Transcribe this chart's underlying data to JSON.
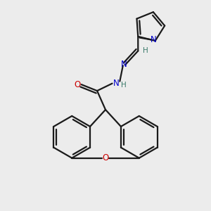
{
  "bg_color": "#ececec",
  "bond_color": "#1a1a1a",
  "N_color": "#0000cc",
  "O_color": "#cc0000",
  "H_color": "#3a7a6a",
  "line_width": 1.6,
  "dbo": 0.12,
  "figsize": [
    3.0,
    3.0
  ],
  "dpi": 100,
  "xlim": [
    0,
    10
  ],
  "ylim": [
    0,
    10
  ]
}
